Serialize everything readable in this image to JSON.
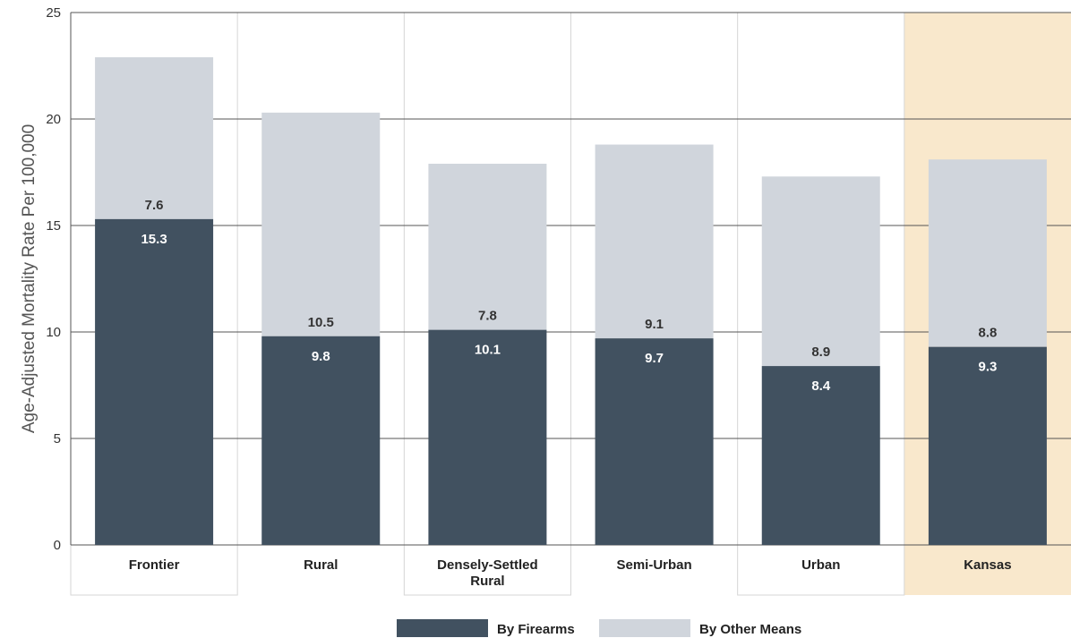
{
  "chart_data": {
    "type": "bar",
    "stacked": true,
    "ylabel": "Age-Adjusted Mortality Rate Per 100,000",
    "ylim": [
      0,
      25
    ],
    "yticks": [
      "0",
      "5",
      "10",
      "15",
      "20",
      "25"
    ],
    "categories": [
      [
        "Frontier"
      ],
      [
        "Rural"
      ],
      [
        "Densely-Settled",
        "Rural"
      ],
      [
        "Semi-Urban"
      ],
      [
        "Urban"
      ],
      [
        "Kansas"
      ]
    ],
    "highlight_category": "Kansas",
    "grid": true,
    "legend_position": "bottom",
    "series": [
      {
        "name": "By Firearms",
        "color": "#415160",
        "values": [
          15.3,
          9.8,
          10.1,
          9.7,
          8.4,
          9.3
        ],
        "labels": [
          "15.3",
          "9.8",
          "10.1",
          "9.7",
          "8.4",
          "9.3"
        ]
      },
      {
        "name": "By Other Means",
        "color": "#d0d5dc",
        "values": [
          7.6,
          10.5,
          7.8,
          9.1,
          8.9,
          8.8
        ],
        "labels": [
          "7.6",
          "10.5",
          "7.8",
          "9.1",
          "8.9",
          "8.8"
        ]
      }
    ],
    "highlight_color": "#f9e8cc"
  }
}
